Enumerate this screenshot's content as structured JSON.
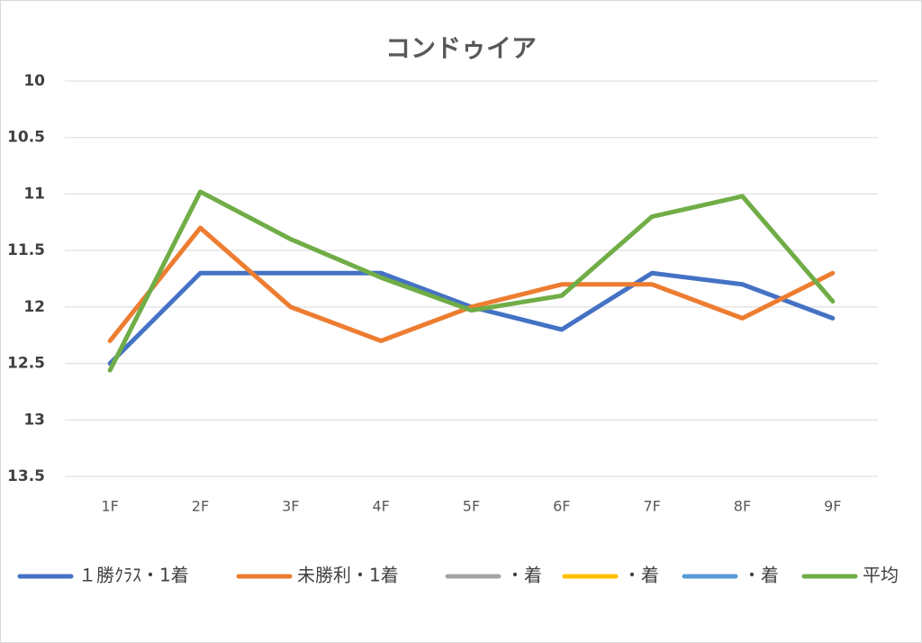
{
  "chart_data": {
    "type": "line",
    "title": "コンドゥイア",
    "categories": [
      "1F",
      "2F",
      "3F",
      "4F",
      "5F",
      "6F",
      "7F",
      "8F",
      "9F"
    ],
    "series": [
      {
        "name": "１勝ｸﾗｽ・1着",
        "color": "#4472c4",
        "values": [
          12.5,
          11.7,
          11.7,
          11.7,
          12.0,
          12.2,
          11.7,
          11.8,
          12.1
        ]
      },
      {
        "name": "未勝利・1着",
        "color": "#ed7d31",
        "values": [
          12.3,
          11.3,
          12.0,
          12.3,
          12.0,
          11.8,
          11.8,
          12.1,
          11.7
        ]
      },
      {
        "name": "・着",
        "color": "#a5a5a5",
        "values": [
          null,
          null,
          null,
          null,
          null,
          null,
          null,
          null,
          null
        ]
      },
      {
        "name": "・着",
        "color": "#ffc000",
        "values": [
          null,
          null,
          null,
          null,
          null,
          null,
          null,
          null,
          null
        ]
      },
      {
        "name": "・着",
        "color": "#5b9bd5",
        "values": [
          null,
          null,
          null,
          null,
          null,
          null,
          null,
          null,
          null
        ]
      },
      {
        "name": "平均",
        "color": "#70ad47",
        "values": [
          12.56,
          10.98,
          11.4,
          11.74,
          12.03,
          11.9,
          11.2,
          11.02,
          11.95
        ]
      }
    ],
    "ylim": [
      10,
      13.5
    ],
    "yticks": [
      10,
      10.5,
      11,
      11.5,
      12,
      12.5,
      13,
      13.5
    ],
    "y_inverted": true,
    "grid": true,
    "legend": "bottom"
  }
}
